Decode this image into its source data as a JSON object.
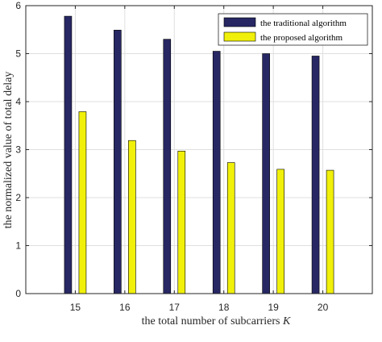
{
  "chart_data": {
    "type": "bar",
    "categories": [
      "15",
      "16",
      "17",
      "18",
      "19",
      "20"
    ],
    "series": [
      {
        "name": "the traditional algorithm",
        "color": "#272764",
        "values": [
          5.78,
          5.49,
          5.3,
          5.05,
          5.0,
          4.95
        ]
      },
      {
        "name": "the proposed algorithm",
        "color": "#f0f00a",
        "values": [
          3.79,
          3.19,
          2.97,
          2.73,
          2.59,
          2.57
        ]
      }
    ],
    "xlabel_prefix": "the total number of subcarriers ",
    "xlabel_var": "K",
    "ylabel": "the normalized value of total delay",
    "ylim": [
      0,
      6
    ],
    "yticks": [
      "0",
      "1",
      "2",
      "3",
      "4",
      "5",
      "6"
    ],
    "grid": true,
    "legend_position": "top-right"
  }
}
